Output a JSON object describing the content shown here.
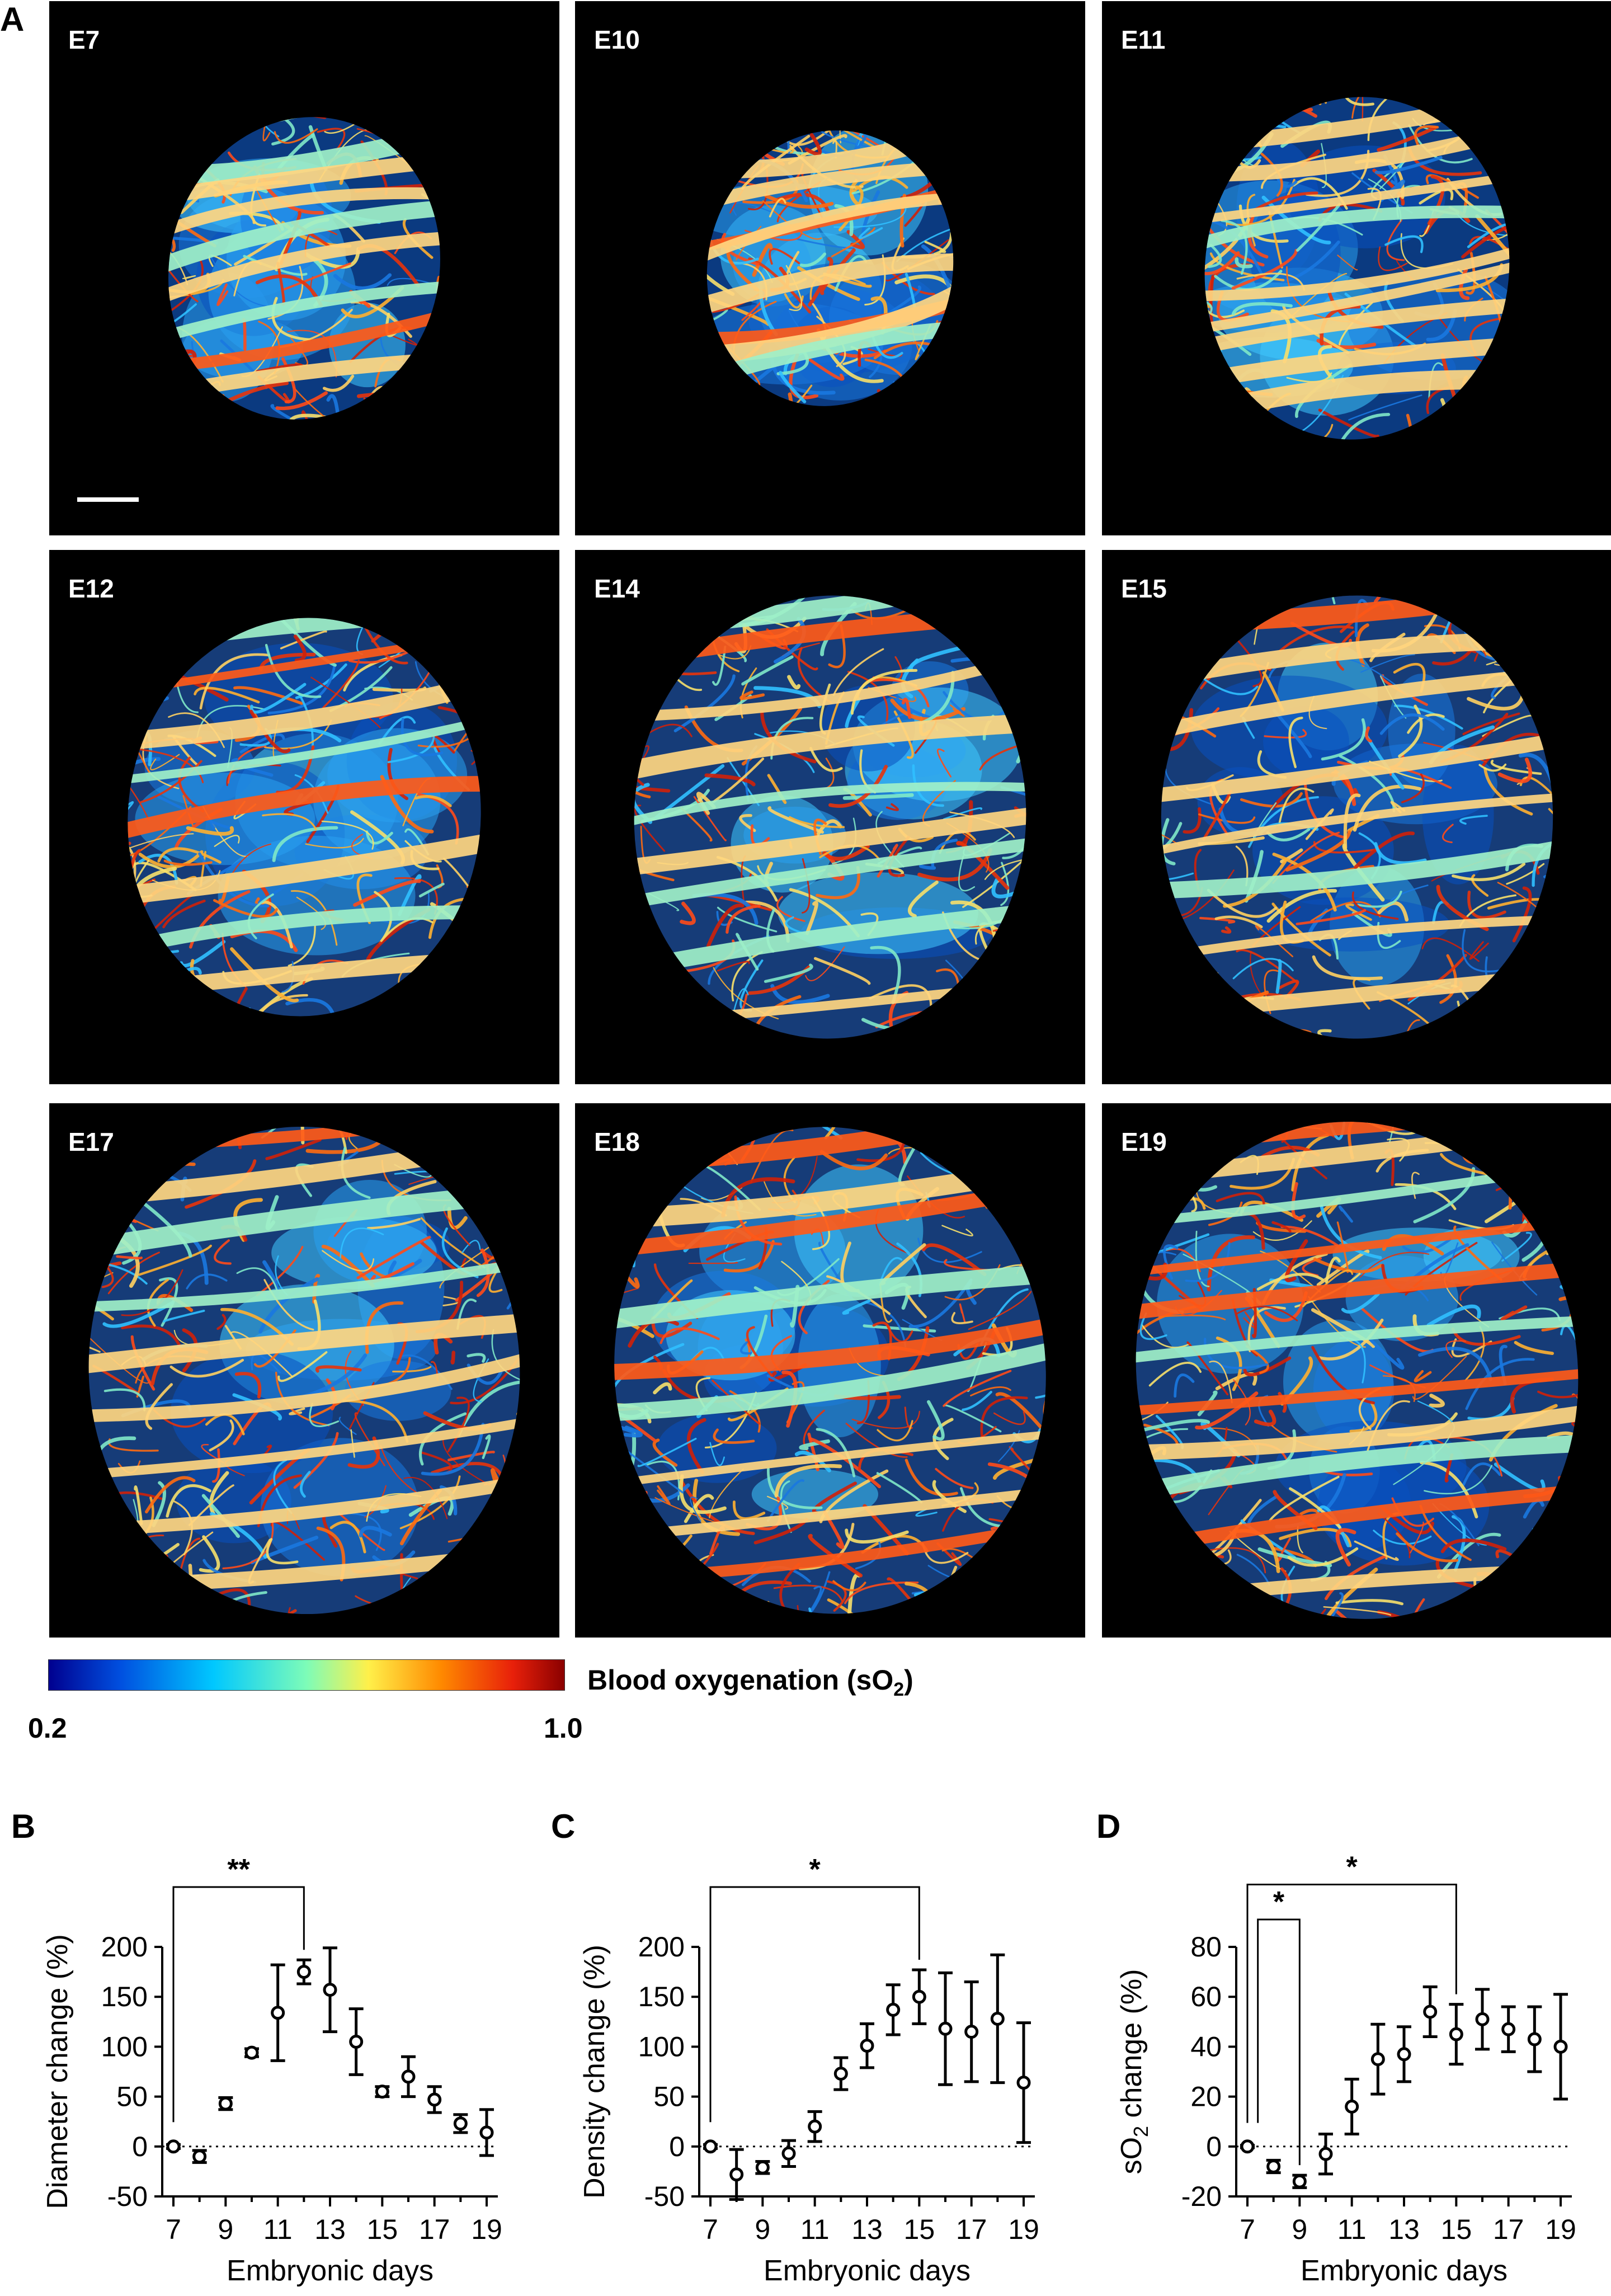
{
  "panel_labels": {
    "A": "A",
    "B": "B",
    "C": "C",
    "D": "D"
  },
  "images": [
    {
      "label": "E7"
    },
    {
      "label": "E10"
    },
    {
      "label": "E11"
    },
    {
      "label": "E12"
    },
    {
      "label": "E14"
    },
    {
      "label": "E15"
    },
    {
      "label": "E17"
    },
    {
      "label": "E18"
    },
    {
      "label": "E19"
    }
  ],
  "colorbar": {
    "title": "Blood oxygenation (sO",
    "title_sub": "2",
    "title_end": ")",
    "min_label": "0.2",
    "max_label": "1.0",
    "colors": [
      "#00008f",
      "#0050e0",
      "#00c8ff",
      "#7dfcb8",
      "#fff04a",
      "#ff8a00",
      "#e8200a",
      "#8a0000"
    ]
  },
  "chart_data": [
    {
      "type": "scatter",
      "panel": "B",
      "xlabel": "Embryonic days",
      "ylabel": "Diameter change (%)",
      "ylim": [
        -50,
        200
      ],
      "yticks": [
        -50,
        0,
        50,
        100,
        150,
        200
      ],
      "xlim": [
        7,
        19
      ],
      "xticks": [
        7,
        9,
        11,
        13,
        15,
        17,
        19
      ],
      "x": [
        7,
        8,
        9,
        10,
        11,
        12,
        13,
        14,
        15,
        16,
        17,
        18,
        19
      ],
      "y": [
        0,
        -10,
        43,
        94,
        134,
        175,
        157,
        105,
        55,
        70,
        47,
        23,
        14
      ],
      "err": [
        2,
        6,
        6,
        4,
        48,
        12,
        42,
        33,
        5,
        20,
        13,
        9,
        23
      ],
      "significance": [
        {
          "from": 7,
          "to": 12,
          "label": "**",
          "level": 260
        }
      ]
    },
    {
      "type": "scatter",
      "panel": "C",
      "xlabel": "Embryonic days",
      "ylabel": "Density change (%)",
      "ylim": [
        -50,
        200
      ],
      "yticks": [
        -50,
        0,
        50,
        100,
        150,
        200
      ],
      "xlim": [
        7,
        19
      ],
      "xticks": [
        7,
        9,
        11,
        13,
        15,
        17,
        19
      ],
      "x": [
        7,
        8,
        9,
        10,
        11,
        12,
        13,
        14,
        15,
        16,
        17,
        18,
        19
      ],
      "y": [
        0,
        -28,
        -21,
        -7,
        20,
        73,
        101,
        137,
        150,
        118,
        115,
        128,
        64
      ],
      "err": [
        2,
        25,
        6,
        13,
        15,
        16,
        22,
        25,
        27,
        56,
        50,
        64,
        60
      ],
      "significance": [
        {
          "from": 7,
          "to": 15,
          "label": "*",
          "level": 260
        }
      ]
    },
    {
      "type": "scatter",
      "panel": "D",
      "xlabel": "Embryonic days",
      "ylabel": "sO",
      "ylabel_sub": "2",
      "ylabel_end": " change (%)",
      "ylim": [
        -20,
        80
      ],
      "yticks": [
        -20,
        0,
        20,
        40,
        60,
        80
      ],
      "xlim": [
        7,
        19
      ],
      "xticks": [
        7,
        9,
        11,
        13,
        15,
        17,
        19
      ],
      "x": [
        7,
        8,
        9,
        10,
        11,
        12,
        13,
        14,
        15,
        16,
        17,
        18,
        19
      ],
      "y": [
        0,
        -8,
        -14,
        -3,
        16,
        35,
        37,
        54,
        45,
        51,
        47,
        43,
        40
      ],
      "err": [
        0.5,
        2.5,
        2.5,
        8,
        11,
        14,
        11,
        10,
        12,
        12,
        9,
        13,
        21
      ],
      "significance": [
        {
          "from": 7,
          "to": 15,
          "label": "*",
          "level": 105
        },
        {
          "from": 7.4,
          "to": 9,
          "label": "*",
          "level": 91
        }
      ]
    }
  ]
}
